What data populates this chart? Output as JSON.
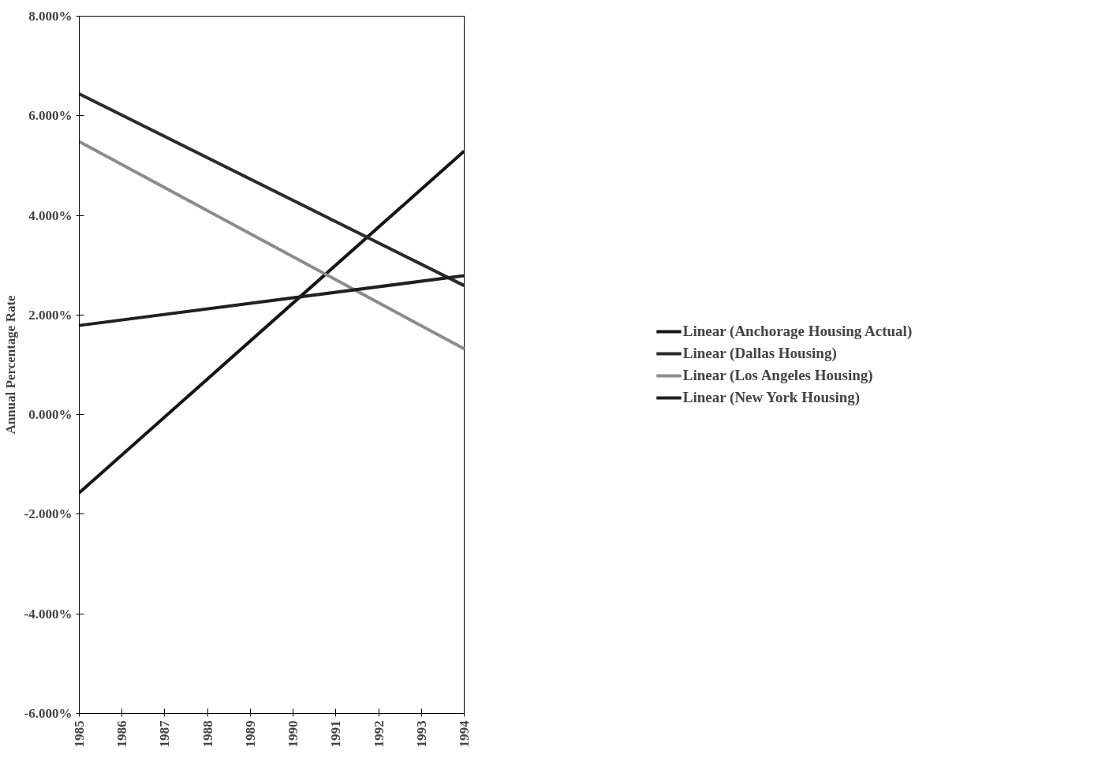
{
  "chart_data": {
    "type": "line",
    "ylabel": "Annual Percentage Rate",
    "x": [
      1985,
      1994
    ],
    "series": [
      {
        "name": "Linear (Anchorage Housing Actual)",
        "color": "#151515",
        "values": [
          -1.57,
          5.29
        ]
      },
      {
        "name": "Linear (Dallas Housing)",
        "color": "#2a2a2a",
        "values": [
          6.44,
          2.59
        ]
      },
      {
        "name": "Linear (Los Angeles Housing)",
        "color": "#8c8c8c",
        "values": [
          5.48,
          1.32
        ]
      },
      {
        "name": "Linear (New York Housing)",
        "color": "#202020",
        "values": [
          1.79,
          2.79
        ]
      }
    ],
    "xlim": [
      1985,
      1994
    ],
    "xticks": [
      1985,
      1986,
      1987,
      1988,
      1989,
      1990,
      1991,
      1992,
      1993,
      1994
    ],
    "ylim": [
      -6,
      8
    ],
    "yticks": [
      {
        "value": -6,
        "label": "-6.000%"
      },
      {
        "value": -4,
        "label": "-4.000%"
      },
      {
        "value": -2,
        "label": "-2.000%"
      },
      {
        "value": 0,
        "label": "0.000%"
      },
      {
        "value": 2,
        "label": "2.000%"
      },
      {
        "value": 4,
        "label": "4.000%"
      },
      {
        "value": 6,
        "label": "6.000%"
      },
      {
        "value": 8,
        "label": "8.000%"
      }
    ],
    "grid": false,
    "legend": "right",
    "line_style": "solid",
    "marker": "none"
  }
}
